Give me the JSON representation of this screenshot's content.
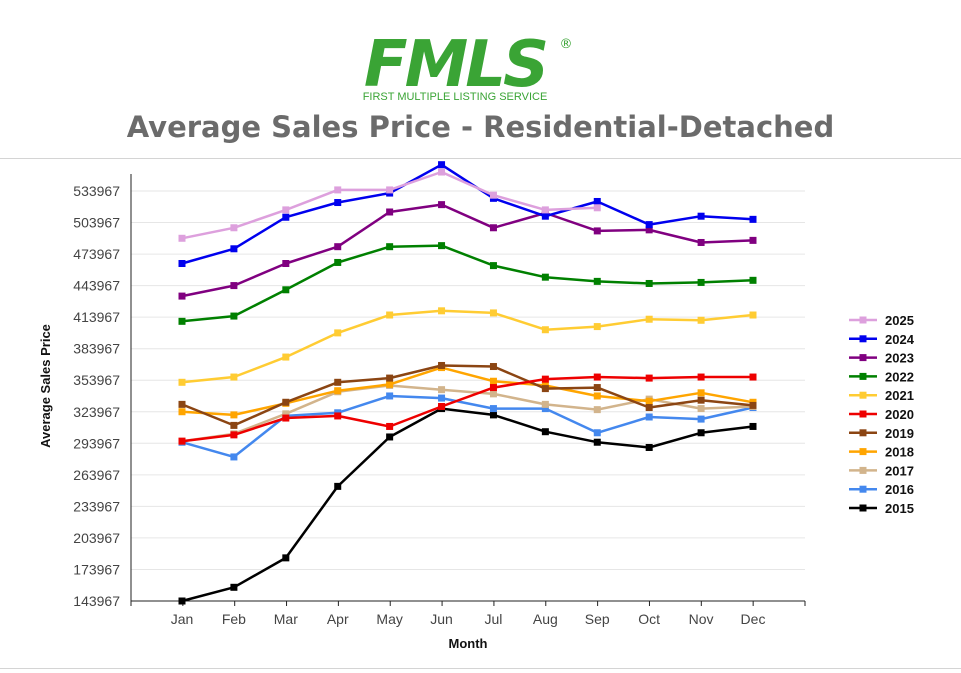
{
  "logo": {
    "wordmark": "FMLS",
    "registered_mark": "®",
    "tagline": "FIRST MULTIPLE LISTING SERVICE",
    "brand_color": "#3aa435"
  },
  "chart_data": {
    "type": "line",
    "title": "Average Sales Price - Residential-Detached",
    "xlabel": "Month",
    "ylabel": "Average Sales Price",
    "categories": [
      "Jan",
      "Feb",
      "Mar",
      "Apr",
      "May",
      "Jun",
      "Jul",
      "Aug",
      "Sep",
      "Oct",
      "Nov",
      "Dec"
    ],
    "yticks": [
      143967,
      173967,
      203967,
      233967,
      263967,
      293967,
      323967,
      353967,
      383967,
      413967,
      443967,
      473967,
      503967,
      533967
    ],
    "ylim": [
      143967,
      559000
    ],
    "grid": true,
    "legend_position": "right",
    "series": [
      {
        "name": "2025",
        "color": "#dda0dd",
        "values": [
          489000,
          499000,
          516000,
          535000,
          535000,
          552000,
          530000,
          516000,
          518000,
          null,
          null,
          null
        ]
      },
      {
        "name": "2024",
        "color": "#0000ee",
        "values": [
          465000,
          479000,
          509000,
          523000,
          532000,
          559000,
          527000,
          510000,
          524000,
          502000,
          510000,
          507000
        ]
      },
      {
        "name": "2023",
        "color": "#800080",
        "values": [
          434000,
          444000,
          465000,
          481000,
          514000,
          521000,
          499000,
          513000,
          496000,
          497000,
          485000,
          487000
        ]
      },
      {
        "name": "2022",
        "color": "#008000",
        "values": [
          410000,
          415000,
          440000,
          466000,
          481000,
          482000,
          463000,
          452000,
          448000,
          446000,
          447000,
          449000
        ]
      },
      {
        "name": "2021",
        "color": "#ffcc33",
        "values": [
          352000,
          357000,
          376000,
          399000,
          416000,
          420000,
          418000,
          402000,
          405000,
          412000,
          411000,
          416000
        ]
      },
      {
        "name": "2020",
        "color": "#ee0000",
        "values": [
          296000,
          302000,
          318000,
          320000,
          310000,
          329000,
          347000,
          355000,
          357000,
          356000,
          357000,
          357000
        ]
      },
      {
        "name": "2019",
        "color": "#8b4513",
        "values": [
          331000,
          311000,
          333000,
          352000,
          356000,
          368000,
          367000,
          346000,
          347000,
          328000,
          335000,
          330000
        ]
      },
      {
        "name": "2018",
        "color": "#ffa500",
        "values": [
          324000,
          321000,
          332000,
          344000,
          350000,
          366000,
          353000,
          349000,
          339000,
          334000,
          342000,
          333000
        ]
      },
      {
        "name": "2017",
        "color": "#d2b48c",
        "values": [
          296000,
          303000,
          322000,
          343000,
          349000,
          345000,
          341000,
          331000,
          326000,
          336000,
          327000,
          329000
        ]
      },
      {
        "name": "2016",
        "color": "#4488ee",
        "values": [
          295000,
          281000,
          320000,
          323000,
          339000,
          337000,
          327000,
          327000,
          304000,
          319000,
          317000,
          328000
        ]
      },
      {
        "name": "2015",
        "color": "#000000",
        "values": [
          143967,
          157000,
          185000,
          253000,
          300000,
          327000,
          321000,
          305000,
          295000,
          290000,
          304000,
          310000
        ]
      }
    ]
  }
}
